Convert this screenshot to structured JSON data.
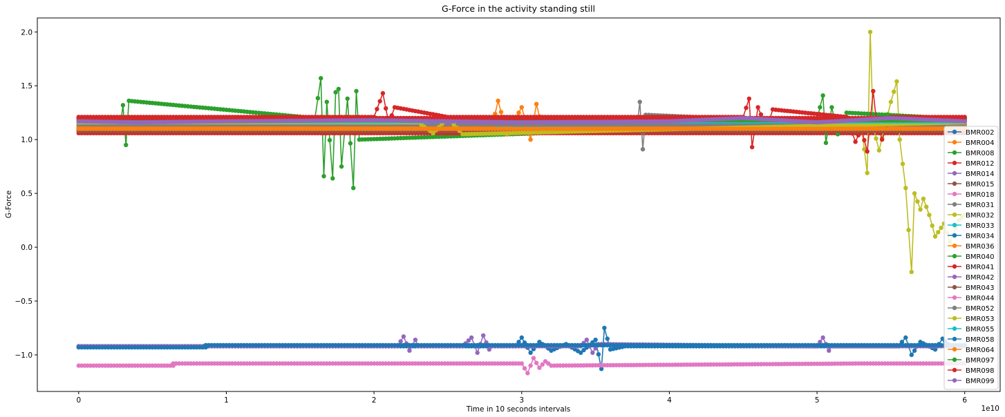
{
  "chart_data": {
    "type": "line",
    "title": "G-Force in the activity standing still",
    "xlabel": "Time in 10 seconds intervals",
    "ylabel": "G-Force",
    "x_offset_label": "1e10",
    "xlim": [
      -0.28,
      6.24
    ],
    "ylim": [
      -1.34,
      2.13
    ],
    "x_ticks": [
      0,
      1,
      2,
      3,
      4,
      5,
      6
    ],
    "x_tick_labels": [
      "0",
      "1",
      "2",
      "3",
      "4",
      "5",
      "6"
    ],
    "y_ticks": [
      -1.0,
      -0.5,
      0.0,
      0.5,
      1.0,
      1.5,
      2.0
    ],
    "y_tick_labels": [
      "−1.0",
      "−0.5",
      "0.0",
      "0.5",
      "1.0",
      "1.5",
      "2.0"
    ],
    "grid": false,
    "legend_position": "lower-right",
    "series": [
      {
        "name": "BMR002",
        "color": "#1f77b4",
        "x": [
          0,
          6
        ],
        "y": [
          1.09,
          1.09
        ]
      },
      {
        "name": "BMR004",
        "color": "#ff7f0e",
        "x": [
          0,
          6
        ],
        "y": [
          1.12,
          1.12
        ]
      },
      {
        "name": "BMR008",
        "color": "#2ca02c",
        "x": [
          0,
          0.28,
          0.3,
          0.32,
          0.34,
          1.6,
          1.64,
          1.66,
          1.68,
          1.72,
          1.74,
          1.76,
          1.78,
          1.82,
          1.86,
          1.88,
          1.9,
          6
        ],
        "y": [
          1.2,
          1.1,
          1.32,
          0.95,
          1.36,
          1.2,
          1.57,
          0.66,
          1.35,
          0.64,
          1.44,
          1.47,
          0.75,
          1.38,
          0.55,
          1.45,
          1.0,
          1.2
        ]
      },
      {
        "name": "BMR012",
        "color": "#d62728",
        "x": [
          0,
          6
        ],
        "y": [
          1.06,
          1.06
        ]
      },
      {
        "name": "BMR014",
        "color": "#9467bd",
        "x": [
          0,
          6
        ],
        "y": [
          1.15,
          1.15
        ]
      },
      {
        "name": "BMR015",
        "color": "#8c564b",
        "x": [
          0,
          6
        ],
        "y": [
          1.1,
          1.1
        ]
      },
      {
        "name": "BMR018",
        "color": "#e377c2",
        "x": [
          0,
          6
        ],
        "y": [
          1.13,
          1.13
        ]
      },
      {
        "name": "BMR031",
        "color": "#7f7f7f",
        "x": [
          0,
          3.78,
          3.8,
          3.82,
          3.84,
          6
        ],
        "y": [
          1.1,
          1.1,
          1.35,
          0.91,
          1.23,
          1.1
        ]
      },
      {
        "name": "BMR032",
        "color": "#bcbd22",
        "x": [
          0,
          5.3,
          5.34,
          5.36,
          5.38,
          5.42,
          5.5,
          5.54,
          5.56,
          5.6,
          5.64,
          5.66,
          5.7,
          5.72,
          5.76,
          5.8,
          5.86,
          5.9,
          5.96,
          6
        ],
        "y": [
          1.13,
          1.13,
          0.69,
          2.0,
          1.12,
          0.9,
          1.35,
          1.54,
          1.0,
          0.55,
          -0.23,
          0.5,
          0.35,
          0.45,
          0.3,
          0.1,
          0.22,
          0.05,
          0.25,
          0.3
        ]
      },
      {
        "name": "BMR033",
        "color": "#17becf",
        "x": [
          0,
          6
        ],
        "y": [
          1.11,
          1.11
        ]
      },
      {
        "name": "BMR034",
        "color": "#1f77b4",
        "x": [
          0,
          2.96,
          3.0,
          3.06,
          3.12,
          3.2,
          3.3,
          3.4,
          3.5,
          3.54,
          3.56,
          3.6,
          3.7,
          5.55,
          5.6,
          5.64,
          5.7,
          5.8,
          5.85,
          5.9,
          6
        ],
        "y": [
          -0.92,
          -0.92,
          -0.84,
          -0.98,
          -0.88,
          -0.96,
          -0.9,
          -0.98,
          -0.86,
          -1.13,
          -0.75,
          -0.95,
          -0.92,
          -0.92,
          -0.84,
          -1.0,
          -0.88,
          -0.95,
          -0.85,
          -0.92,
          -0.92
        ]
      },
      {
        "name": "BMR036",
        "color": "#ff7f0e",
        "x": [
          0,
          2.8,
          2.84,
          2.9,
          3.0,
          3.06,
          3.1,
          3.14,
          6
        ],
        "y": [
          1.12,
          1.12,
          1.36,
          1.05,
          1.3,
          1.0,
          1.33,
          1.1,
          1.12
        ]
      },
      {
        "name": "BMR040",
        "color": "#2ca02c",
        "x": [
          0,
          5.0,
          5.04,
          5.06,
          5.1,
          5.14,
          5.2,
          6
        ],
        "y": [
          1.19,
          1.19,
          1.41,
          0.97,
          1.3,
          1.05,
          1.25,
          1.19
        ]
      },
      {
        "name": "BMR041",
        "color": "#d62728",
        "x": [
          0,
          2.0,
          2.06,
          2.1,
          2.14,
          2.5,
          3.1,
          4.5,
          4.54,
          4.56,
          4.6,
          4.66,
          4.7,
          5.2,
          5.26,
          5.3,
          5.34,
          5.38,
          5.4,
          5.44,
          5.5,
          6
        ],
        "y": [
          1.21,
          1.21,
          1.43,
          1.15,
          1.3,
          1.21,
          1.21,
          1.21,
          1.38,
          0.93,
          1.3,
          1.1,
          1.28,
          1.21,
          0.98,
          1.1,
          0.89,
          1.45,
          1.2,
          1.0,
          1.21,
          1.21
        ]
      },
      {
        "name": "BMR042",
        "color": "#9467bd",
        "x": [
          0,
          2.16,
          2.2,
          2.24,
          2.28,
          2.3,
          2.6,
          2.66,
          2.7,
          2.74,
          2.78,
          2.8,
          3.4,
          3.44,
          3.48,
          3.52,
          5.0,
          5.04,
          5.08,
          5.1,
          6
        ],
        "y": [
          -0.92,
          -0.92,
          -0.83,
          -0.96,
          -0.86,
          -0.92,
          -0.92,
          -0.84,
          -0.98,
          -0.82,
          -0.95,
          -0.92,
          -0.92,
          -0.86,
          -0.98,
          -0.9,
          -0.92,
          -0.84,
          -0.96,
          -0.92,
          -0.92
        ]
      },
      {
        "name": "BMR043",
        "color": "#8c564b",
        "x": [
          0,
          6
        ],
        "y": [
          1.08,
          1.08
        ]
      },
      {
        "name": "BMR044",
        "color": "#e377c2",
        "x": [
          0,
          0.64,
          0.64,
          3.0,
          3.04,
          3.08,
          3.12,
          3.16,
          3.2,
          5.3,
          6
        ],
        "y": [
          -1.1,
          -1.1,
          -1.08,
          -1.08,
          -1.17,
          -1.03,
          -1.12,
          -1.06,
          -1.1,
          -1.08,
          -1.08
        ]
      },
      {
        "name": "BMR052",
        "color": "#7f7f7f",
        "x": [
          0,
          6
        ],
        "y": [
          1.14,
          1.14
        ]
      },
      {
        "name": "BMR053",
        "color": "#bcbd22",
        "x": [
          0,
          2.3,
          2.4,
          2.5,
          2.6,
          6
        ],
        "y": [
          1.16,
          1.16,
          1.06,
          1.2,
          1.05,
          1.16
        ]
      },
      {
        "name": "BMR055",
        "color": "#17becf",
        "x": [
          0,
          6
        ],
        "y": [
          1.17,
          1.17
        ]
      },
      {
        "name": "BMR058",
        "color": "#1f77b4",
        "x": [
          0,
          0.86,
          0.86,
          6
        ],
        "y": [
          -0.93,
          -0.93,
          -0.91,
          -0.91
        ]
      },
      {
        "name": "BMR064",
        "color": "#ff7f0e",
        "x": [
          0,
          6
        ],
        "y": [
          1.1,
          1.1
        ]
      },
      {
        "name": "BMR097",
        "color": "#2ca02c",
        "x": [
          0,
          6
        ],
        "y": [
          1.18,
          1.18
        ]
      },
      {
        "name": "BMR098",
        "color": "#d62728",
        "x": [
          0,
          6
        ],
        "y": [
          1.2,
          1.2
        ]
      },
      {
        "name": "BMR099",
        "color": "#9467bd",
        "x": [
          0,
          0.4,
          1.0,
          2.0,
          3.0,
          4.0,
          4.5,
          5.0,
          5.5,
          6
        ],
        "y": [
          1.17,
          1.16,
          1.17,
          1.18,
          1.16,
          1.17,
          1.2,
          1.16,
          1.2,
          1.17
        ]
      }
    ]
  }
}
